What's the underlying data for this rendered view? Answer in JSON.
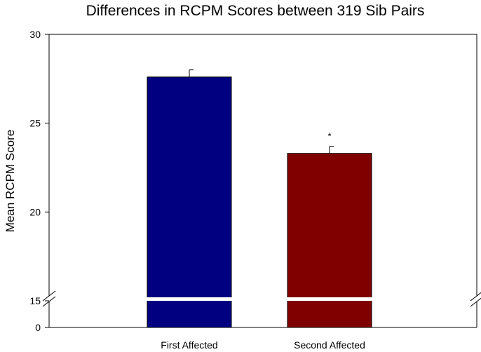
{
  "chart_data": {
    "type": "bar",
    "title": "Differences in RCPM Scores between 319 Sib Pairs",
    "xlabel": "",
    "ylabel": "Mean RCPM Score",
    "categories": [
      "First Affected",
      "Second Affected"
    ],
    "values": [
      27.6,
      23.3
    ],
    "error_upper": [
      28.0,
      23.7
    ],
    "colors": [
      "#000080",
      "#800000"
    ],
    "annotations": [
      {
        "category": "Second Affected",
        "text": "*"
      }
    ],
    "y_axis": {
      "broken": true,
      "lower_segment": [
        0,
        15
      ],
      "upper_segment": [
        15,
        30
      ],
      "ticks": [
        0,
        15,
        20,
        25,
        30
      ],
      "tick_labels": [
        "0",
        "15",
        "20",
        "25",
        "30"
      ]
    },
    "grid": false,
    "legend": "none"
  }
}
